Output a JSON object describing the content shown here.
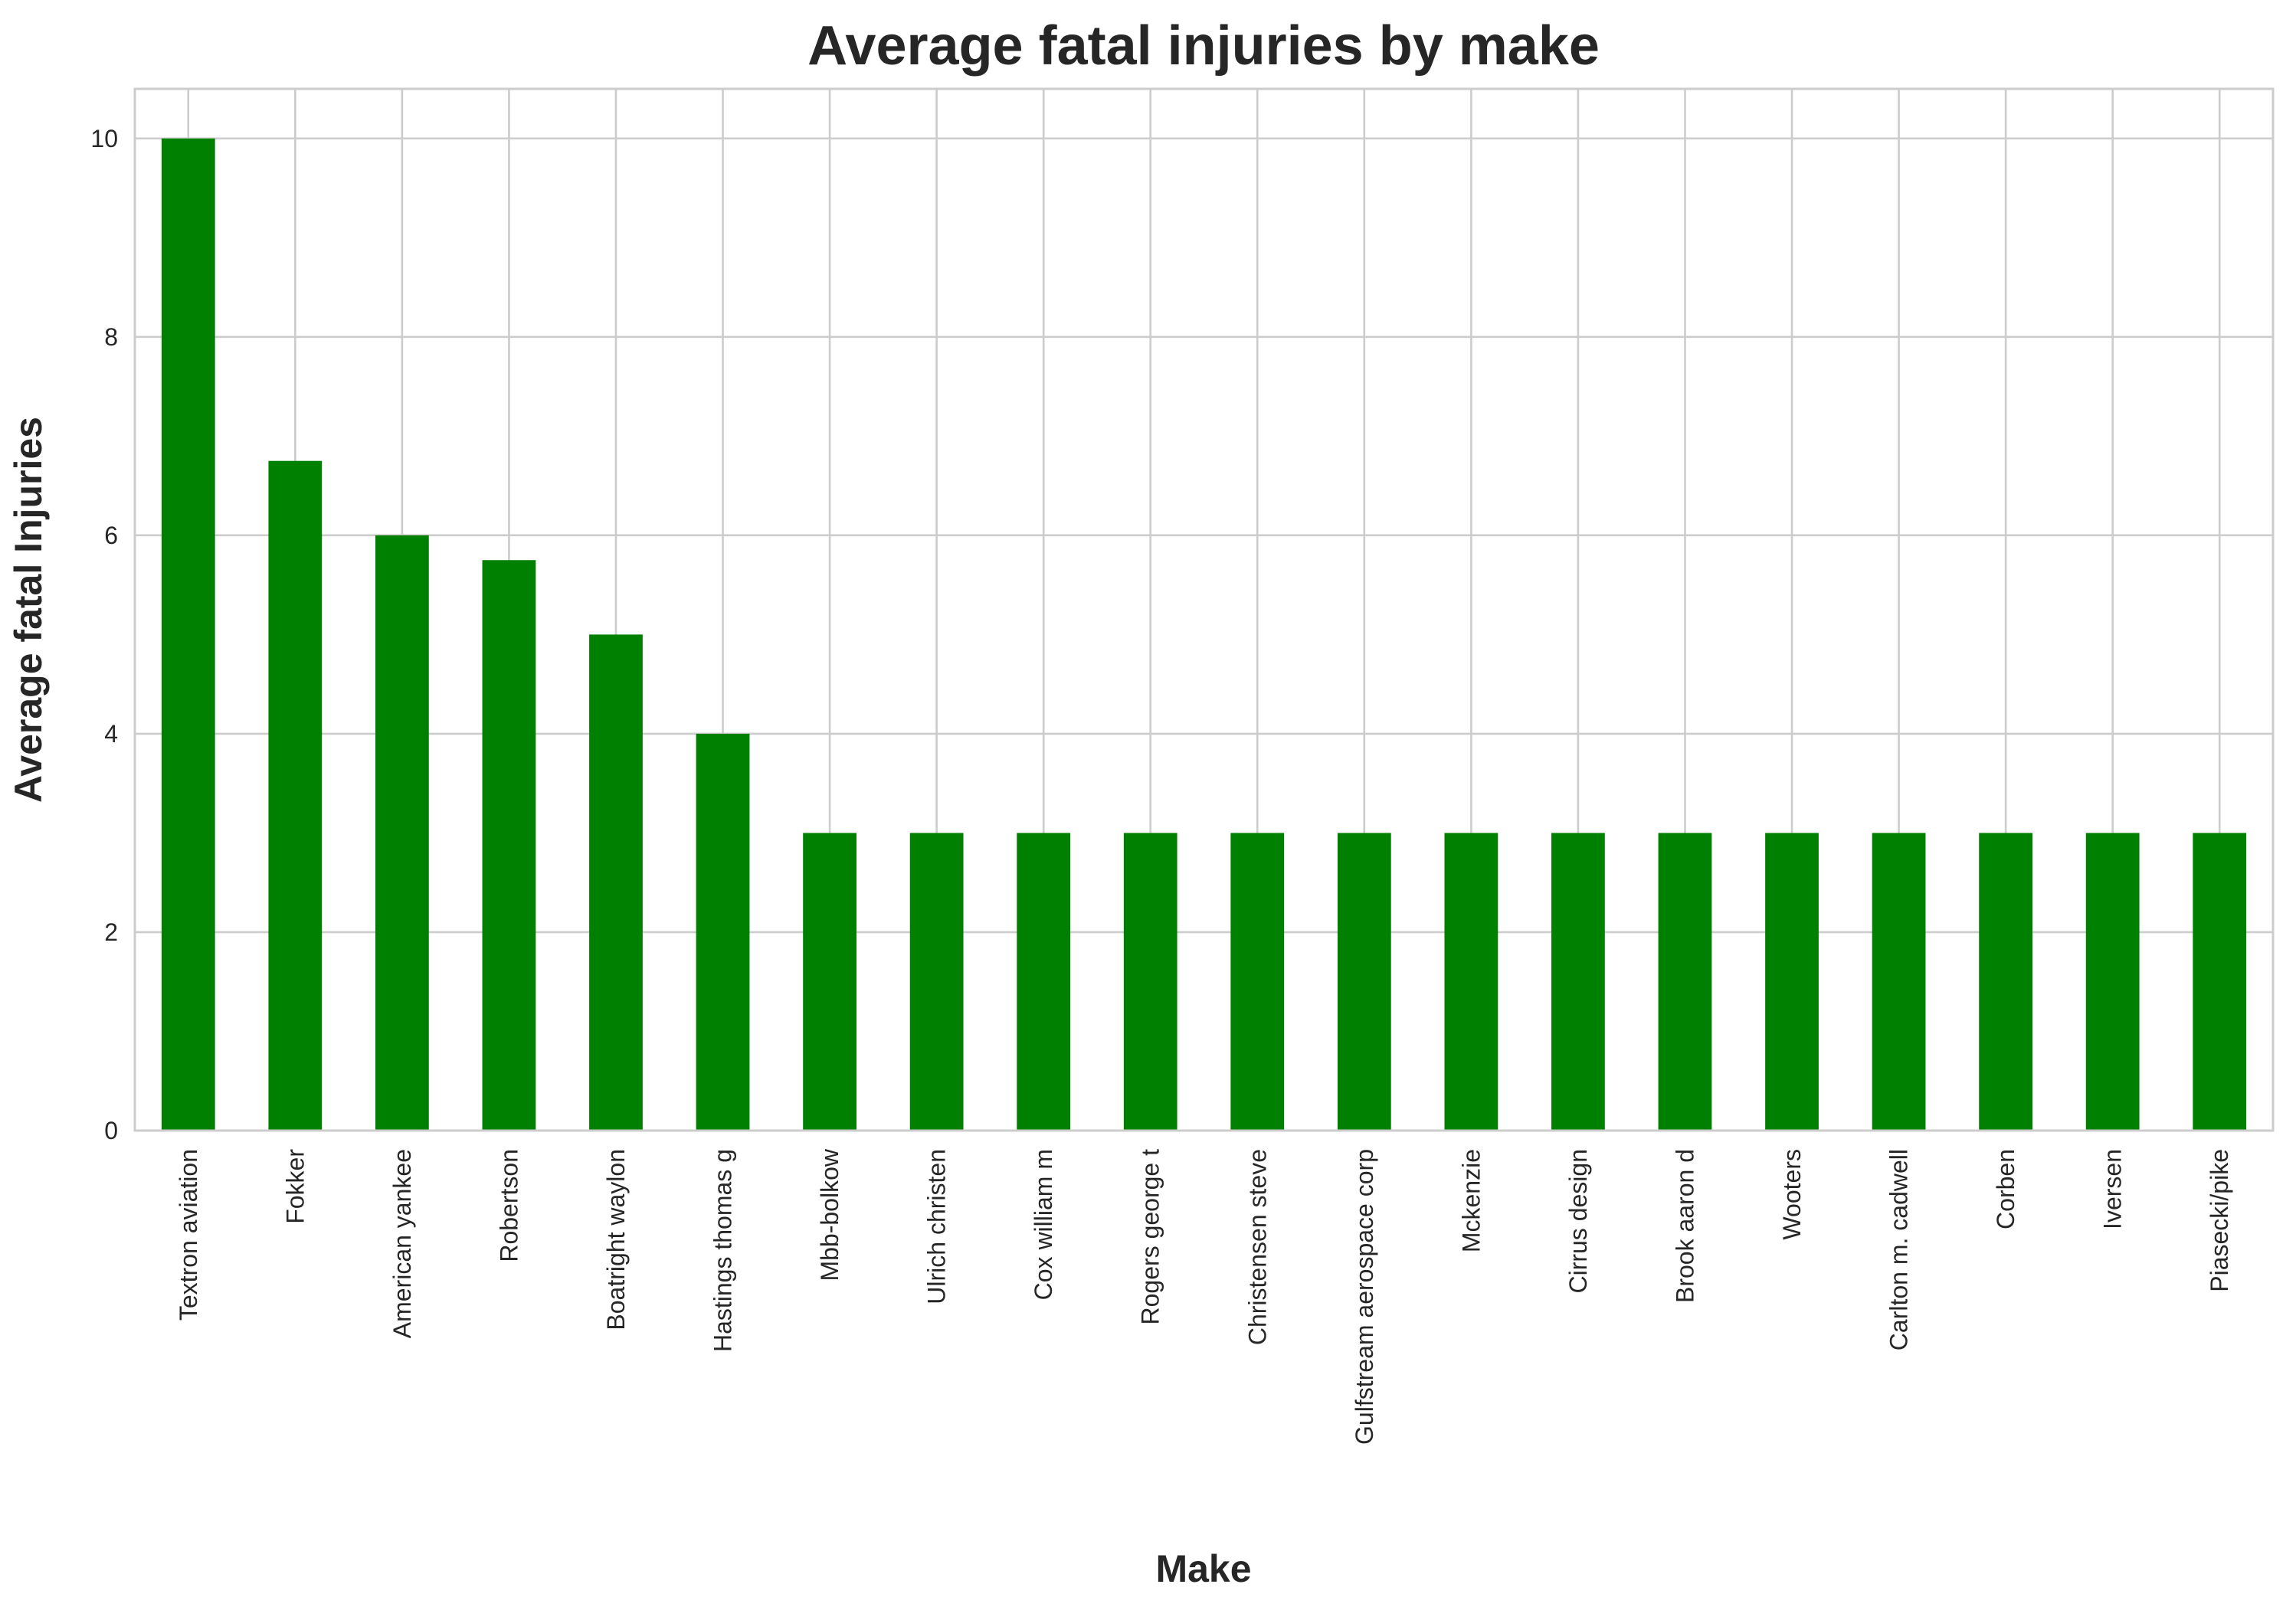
{
  "chart_data": {
    "type": "bar",
    "title": "Average fatal injuries by make",
    "xlabel": "Make",
    "ylabel": "Average fatal Injuries",
    "categories": [
      "Textron aviation",
      "Fokker",
      "American yankee",
      "Robertson",
      "Boatright waylon",
      "Hastings thomas g",
      "Mbb-bolkow",
      "Ulrich christen",
      "Cox william m",
      "Rogers george t",
      "Christensen steve",
      "Gulfstream aerospace corp",
      "Mckenzie",
      "Cirrus design",
      "Brook aaron d",
      "Wooters",
      "Carlton m. cadwell",
      "Corben",
      "Iversen",
      "Piasecki/pike"
    ],
    "values": [
      10,
      6.75,
      6,
      5.75,
      5,
      4,
      3,
      3,
      3,
      3,
      3,
      3,
      3,
      3,
      3,
      3,
      3,
      3,
      3,
      3
    ],
    "ylim": [
      0,
      10.5
    ],
    "yticks": [
      0,
      2,
      4,
      6,
      8,
      10
    ],
    "grid": true,
    "bar_color": "#008000",
    "legend": "none"
  }
}
